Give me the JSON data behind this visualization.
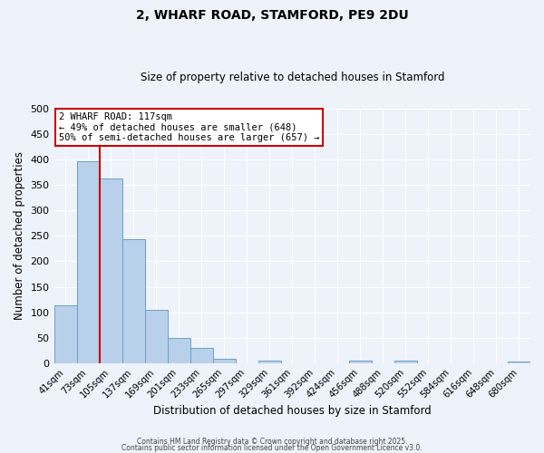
{
  "title": "2, WHARF ROAD, STAMFORD, PE9 2DU",
  "subtitle": "Size of property relative to detached houses in Stamford",
  "xlabel": "Distribution of detached houses by size in Stamford",
  "ylabel": "Number of detached properties",
  "categories": [
    "41sqm",
    "73sqm",
    "105sqm",
    "137sqm",
    "169sqm",
    "201sqm",
    "233sqm",
    "265sqm",
    "297sqm",
    "329sqm",
    "361sqm",
    "392sqm",
    "424sqm",
    "456sqm",
    "488sqm",
    "520sqm",
    "552sqm",
    "584sqm",
    "616sqm",
    "648sqm",
    "680sqm"
  ],
  "bar_values": [
    113,
    397,
    362,
    243,
    105,
    50,
    30,
    8,
    0,
    5,
    0,
    0,
    0,
    5,
    0,
    5,
    0,
    0,
    0,
    0,
    3
  ],
  "bar_color": "#b8d0ea",
  "bar_edge_color": "#6aA0cc",
  "vline_color": "#cc0000",
  "ylim": [
    0,
    500
  ],
  "yticks": [
    0,
    50,
    100,
    150,
    200,
    250,
    300,
    350,
    400,
    450,
    500
  ],
  "annotation_title": "2 WHARF ROAD: 117sqm",
  "annotation_line1": "← 49% of detached houses are smaller (648)",
  "annotation_line2": "50% of semi-detached houses are larger (657) →",
  "annotation_box_color": "#ffffff",
  "annotation_box_edge": "#cc0000",
  "background_color": "#eef2fa",
  "grid_color": "#ffffff",
  "footer1": "Contains HM Land Registry data © Crown copyright and database right 2025.",
  "footer2": "Contains public sector information licensed under the Open Government Licence v3.0."
}
